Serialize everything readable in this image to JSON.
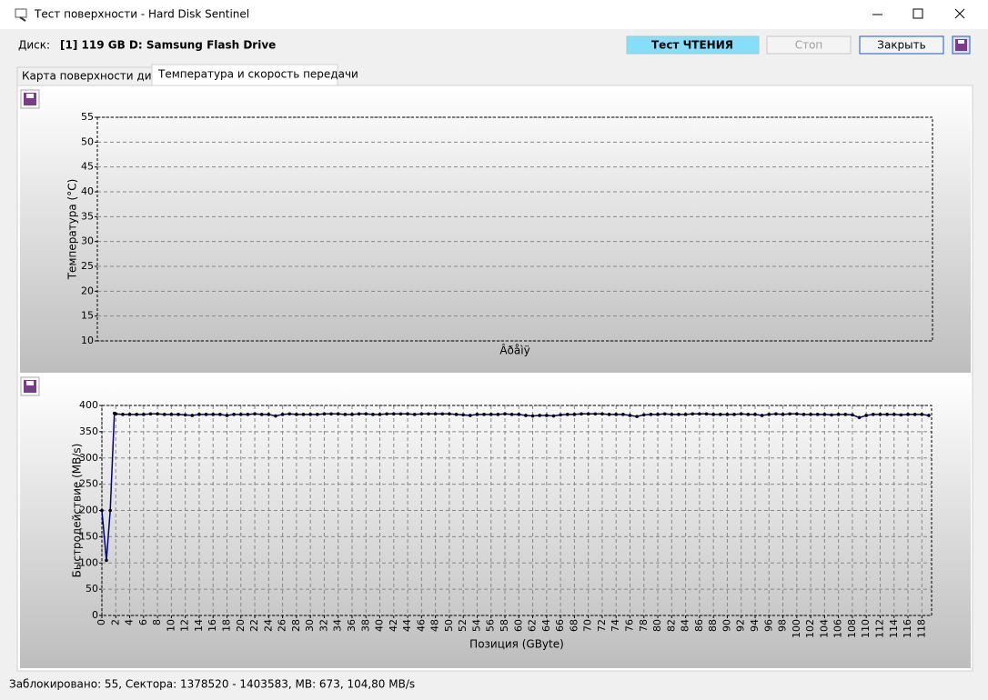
{
  "window": {
    "title": "Тест поверхности - Hard Disk Sentinel"
  },
  "toolbar": {
    "disk_label": "Диск:",
    "disk_name": "[1] 119 GB D: Samsung Flash Drive",
    "status": "Тест ЧТЕНИЯ",
    "stop": "Стоп",
    "close": "Закрыть"
  },
  "tabs": [
    "Карта поверхности диска",
    "Температура и скорость передачи"
  ],
  "status_bar": "Заблокировано: 55, Сектора: 1378520 - 1403583, MB: 673, 104,80 MB/s",
  "chart_data": [
    {
      "type": "line",
      "ylabel": "Температура (°C)",
      "xlabel": "Âðåìÿ",
      "ylim": [
        10,
        55
      ],
      "yticks": [
        10,
        15,
        20,
        25,
        30,
        35,
        40,
        45,
        50,
        55
      ],
      "grid": true
    },
    {
      "type": "line",
      "ylabel": "Быстродействие (MB/s)",
      "xlabel": "Позиция (GByte)",
      "color": "#000080",
      "marker_color": "#000000",
      "x": [
        0,
        0.65,
        1.2,
        1.8,
        2,
        3,
        4,
        5,
        6,
        7,
        8,
        9,
        10,
        11,
        12,
        13,
        14,
        15,
        16,
        17,
        18,
        19,
        20,
        21,
        22,
        23,
        24,
        25,
        26,
        27,
        28,
        29,
        30,
        31,
        32,
        33,
        34,
        35,
        36,
        37,
        38,
        39,
        40,
        41,
        42,
        43,
        44,
        45,
        46,
        47,
        48,
        49,
        50,
        51,
        52,
        53,
        54,
        55,
        56,
        57,
        58,
        59,
        60,
        61,
        62,
        63,
        64,
        65,
        66,
        67,
        68,
        69,
        70,
        71,
        72,
        73,
        74,
        75,
        76,
        77,
        78,
        79,
        80,
        81,
        82,
        83,
        84,
        85,
        86,
        87,
        88,
        89,
        90,
        91,
        92,
        93,
        94,
        95,
        96,
        97,
        98,
        99,
        100,
        101,
        102,
        103,
        104,
        105,
        106,
        107,
        108,
        109,
        110,
        111,
        112,
        113,
        114,
        115,
        116,
        117,
        118,
        119
      ],
      "values": [
        200,
        105,
        200,
        385,
        384,
        383,
        383,
        383,
        383,
        384,
        384,
        383,
        383,
        383,
        382,
        381,
        383,
        383,
        383,
        383,
        381,
        383,
        383,
        383,
        384,
        383,
        383,
        380,
        383,
        384,
        383,
        383,
        383,
        383,
        384,
        384,
        384,
        383,
        383,
        384,
        384,
        383,
        383,
        384,
        384,
        384,
        384,
        383,
        384,
        384,
        384,
        384,
        384,
        383,
        382,
        381,
        383,
        383,
        383,
        383,
        384,
        383,
        383,
        381,
        380,
        381,
        381,
        380,
        382,
        383,
        383,
        384,
        384,
        384,
        384,
        383,
        383,
        383,
        381,
        379,
        382,
        383,
        383,
        384,
        383,
        383,
        383,
        384,
        384,
        384,
        383,
        383,
        383,
        383,
        384,
        383,
        383,
        381,
        383,
        384,
        383,
        384,
        384,
        383,
        383,
        383,
        383,
        382,
        383,
        383,
        382,
        377,
        381,
        383,
        383,
        383,
        383,
        382,
        383,
        383,
        383,
        381
      ],
      "xlim": [
        0,
        119.4
      ],
      "xticks": [
        0,
        2,
        4,
        6,
        8,
        10,
        12,
        14,
        16,
        18,
        20,
        22,
        24,
        26,
        28,
        30,
        32,
        34,
        36,
        38,
        40,
        42,
        44,
        46,
        48,
        50,
        52,
        54,
        56,
        58,
        60,
        62,
        64,
        66,
        68,
        70,
        72,
        74,
        76,
        78,
        80,
        82,
        84,
        86,
        88,
        90,
        92,
        94,
        96,
        98,
        100,
        102,
        104,
        106,
        108,
        110,
        112,
        114,
        116,
        118
      ],
      "ylim": [
        0,
        400
      ],
      "yticks": [
        0,
        50,
        100,
        150,
        200,
        250,
        300,
        350,
        400
      ],
      "grid": true
    }
  ]
}
